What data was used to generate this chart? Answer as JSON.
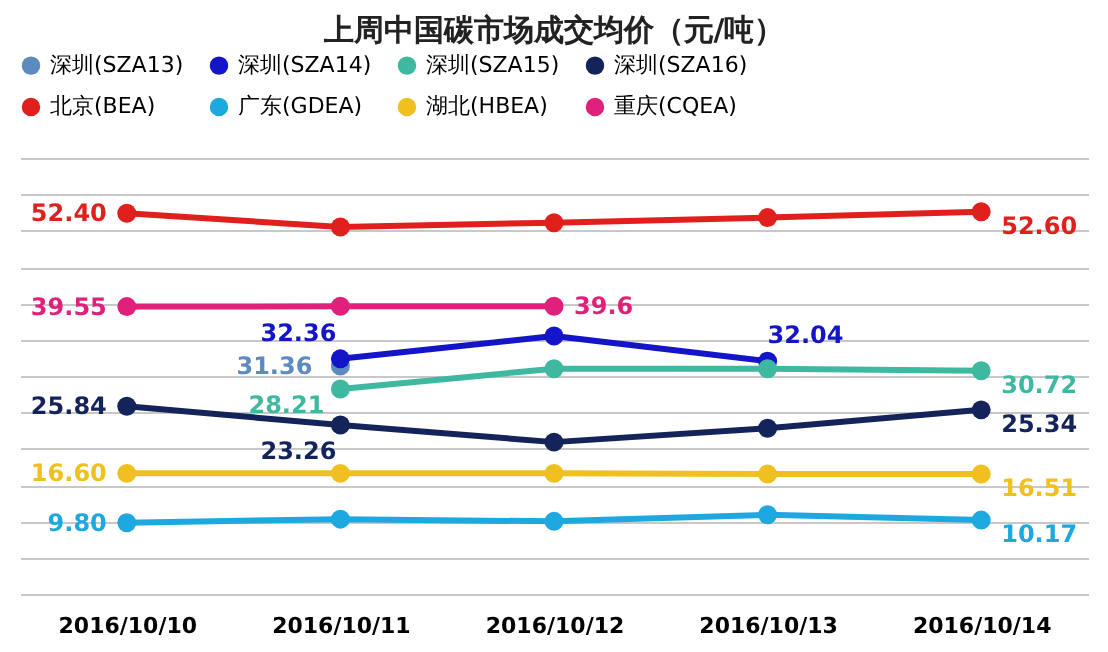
{
  "chart_data": {
    "type": "line",
    "title": "上周中国碳市场成交均价（元/吨）",
    "categories": [
      "2016/10/10",
      "2016/10/11",
      "2016/10/12",
      "2016/10/13",
      "2016/10/14"
    ],
    "series": [
      {
        "name": "深圳(SZA13)",
        "color": "#5b8bbf",
        "values": [
          null,
          31.36,
          null,
          null,
          null
        ],
        "value_labels": [
          null,
          "31.36",
          null,
          null,
          null
        ]
      },
      {
        "name": "深圳(SZA14)",
        "color": "#1414c8",
        "values": [
          null,
          32.36,
          35.5,
          32.04,
          null
        ],
        "value_labels": [
          null,
          "32.36",
          null,
          "32.04",
          null
        ]
      },
      {
        "name": "深圳(SZA15)",
        "color": "#3fb8a0",
        "values": [
          null,
          28.21,
          31.0,
          31.0,
          30.72
        ],
        "value_labels": [
          null,
          "28.21",
          null,
          null,
          "30.72"
        ]
      },
      {
        "name": "深圳(SZA16)",
        "color": "#14245a",
        "values": [
          25.84,
          23.26,
          20.9,
          22.8,
          25.34
        ],
        "value_labels": [
          "25.84",
          "23.26",
          null,
          null,
          "25.34"
        ]
      },
      {
        "name": "北京(BEA)",
        "color": "#e0201c",
        "values": [
          52.4,
          50.5,
          51.1,
          51.8,
          52.6
        ],
        "value_labels": [
          "52.40",
          null,
          null,
          null,
          "52.60"
        ]
      },
      {
        "name": "广东(GDEA)",
        "color": "#1ea8e0",
        "values": [
          9.8,
          10.3,
          10.0,
          10.9,
          10.17
        ],
        "value_labels": [
          "9.80",
          null,
          null,
          null,
          "10.17"
        ]
      },
      {
        "name": "湖北(HBEA)",
        "color": "#f0c020",
        "values": [
          16.6,
          16.6,
          16.6,
          16.5,
          16.51
        ],
        "value_labels": [
          "16.60",
          null,
          null,
          null,
          "16.51"
        ]
      },
      {
        "name": "重庆(CQEA)",
        "color": "#e0207a",
        "values": [
          39.55,
          39.6,
          39.6,
          null,
          null
        ],
        "value_labels": [
          "39.55",
          null,
          "39.6",
          null,
          null
        ]
      }
    ],
    "ylim": [
      0,
      60
    ],
    "tick_labels": "x",
    "grid": "y",
    "legend": "top",
    "marker": "circle",
    "line_style": "solid"
  }
}
